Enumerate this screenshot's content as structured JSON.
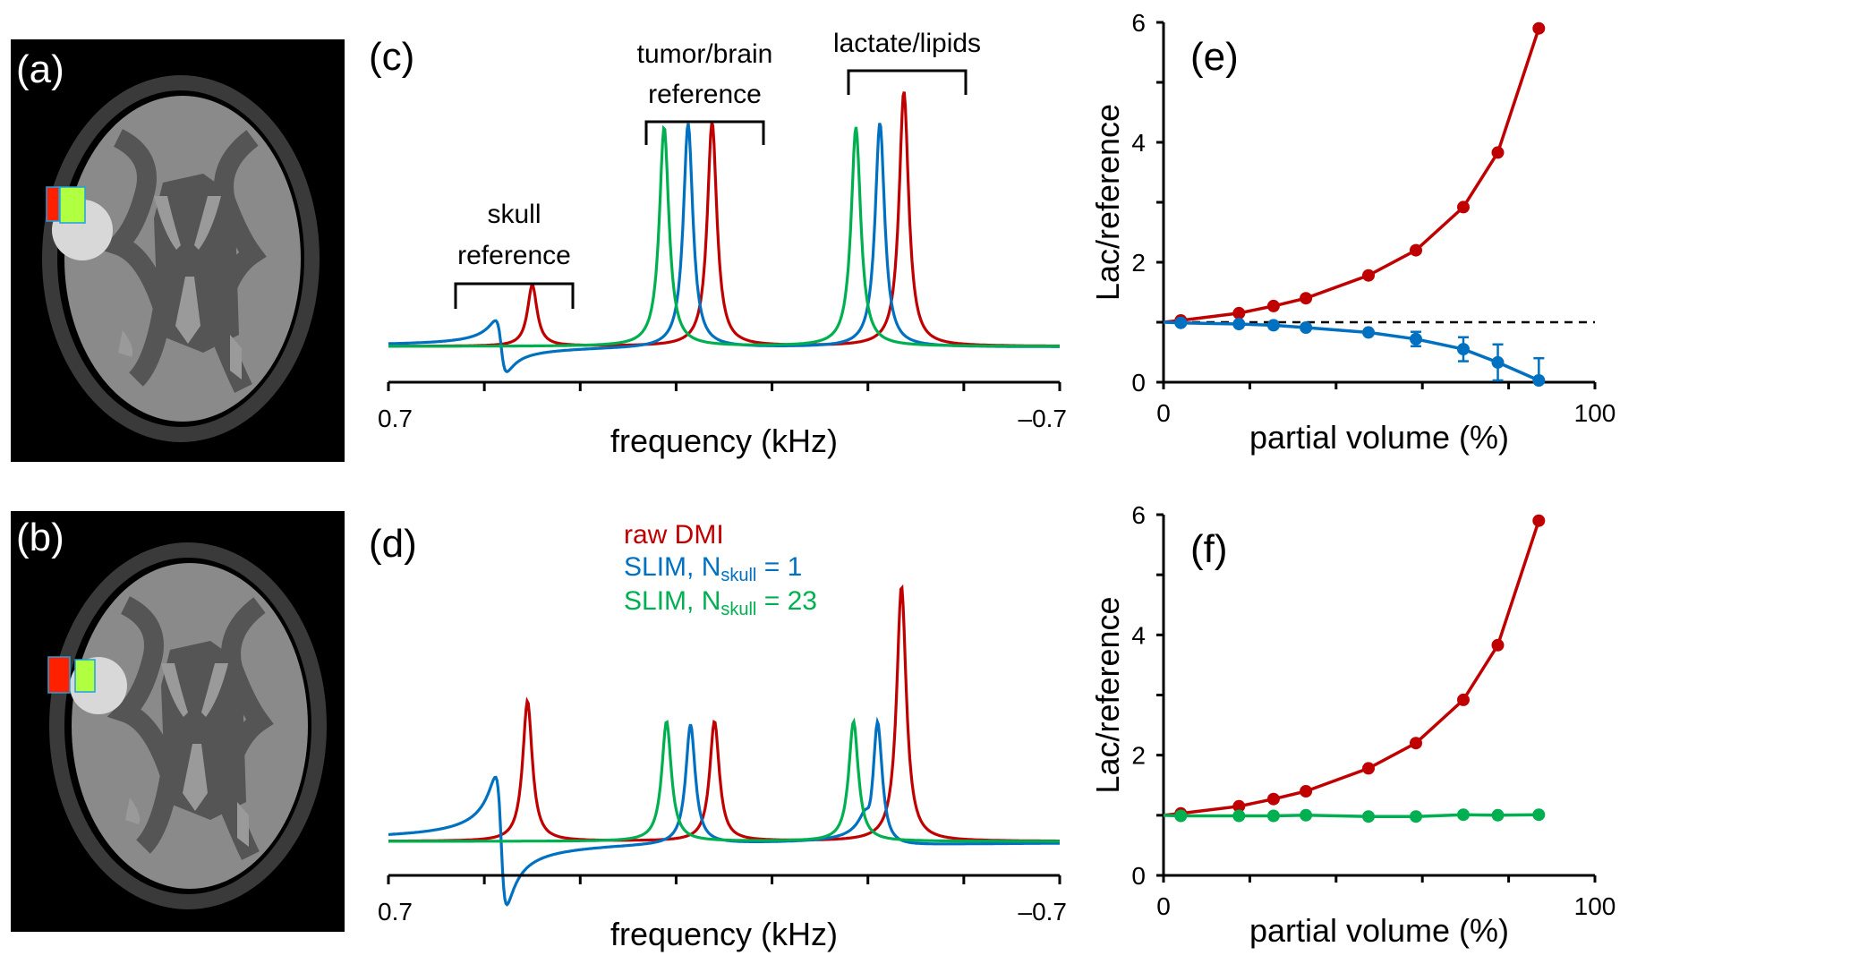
{
  "figure": {
    "panels": {
      "a": {
        "label": "(a)"
      },
      "b": {
        "label": "(b)"
      },
      "c": {
        "label": "(c)"
      },
      "d": {
        "label": "(d)"
      },
      "e": {
        "label": "(e)"
      },
      "f": {
        "label": "(f)"
      }
    },
    "colors": {
      "raw": "#c00000",
      "slim1": "#0070c0",
      "slim23": "#00b050",
      "roi_red": "#ff2000",
      "roi_green": "#b0ff40",
      "roi_outline": "#20a0e0"
    }
  },
  "chart_data": [
    {
      "id": "c",
      "type": "line",
      "title": "",
      "xlabel": "frequency (kHz)",
      "ylabel": "",
      "xlim": [
        0.7,
        -0.7
      ],
      "x_tick_labels": [
        "0.7",
        "-0.7"
      ],
      "x_tick_label_display": [
        "0.7",
        "–0.7"
      ],
      "annotations": [
        {
          "text_lines": [
            "skull",
            "reference"
          ],
          "bracket_kHz": [
            0.45,
            -0.15
          ]
        },
        {
          "text_lines": [
            "tumor/brain",
            "reference"
          ],
          "bracket_kHz": [
            0.15,
            -0.15
          ]
        },
        {
          "text_lines": [
            "lactate/lipids"
          ],
          "bracket_kHz": [
            -0.25,
            -0.55
          ]
        }
      ],
      "series": [
        {
          "name": "raw DMI",
          "color_key": "raw",
          "peaks": [
            {
              "center_kHz": 0.4,
              "height": 0.24
            },
            {
              "center_kHz": 0.025,
              "height": 0.88
            },
            {
              "center_kHz": -0.375,
              "height": 1.0
            }
          ]
        },
        {
          "name": "SLIM, N_skull = 1",
          "color_key": "slim1",
          "peaks": [
            {
              "center_kHz": 0.465,
              "height": -0.1,
              "dispersive": true
            },
            {
              "center_kHz": 0.075,
              "height": 0.88
            },
            {
              "center_kHz": -0.325,
              "height": 0.88
            }
          ]
        },
        {
          "name": "SLIM, N_skull = 23",
          "color_key": "slim23",
          "peaks": [
            {
              "center_kHz": 0.125,
              "height": 0.86
            },
            {
              "center_kHz": -0.275,
              "height": 0.86
            }
          ]
        }
      ]
    },
    {
      "id": "d",
      "type": "line",
      "title": "",
      "xlabel": "frequency (kHz)",
      "ylabel": "",
      "xlim": [
        0.7,
        -0.7
      ],
      "x_tick_labels": [
        "0.7",
        "-0.7"
      ],
      "x_tick_label_display": [
        "0.7",
        "–0.7"
      ],
      "legend": [
        {
          "text": "raw DMI",
          "color_key": "raw"
        },
        {
          "text": "SLIM, N",
          "sub": "skull",
          "suffix": " = 1",
          "color_key": "slim1"
        },
        {
          "text": "SLIM, N",
          "sub": "skull",
          "suffix": " = 23",
          "color_key": "slim23"
        }
      ],
      "legend_position": "top-center",
      "series": [
        {
          "name": "raw DMI",
          "color_key": "raw",
          "peaks": [
            {
              "center_kHz": 0.41,
              "height": 0.55
            },
            {
              "center_kHz": 0.02,
              "height": 0.47
            },
            {
              "center_kHz": -0.37,
              "height": 1.0
            }
          ]
        },
        {
          "name": "SLIM, N_skull = 1",
          "color_key": "slim1",
          "peaks": [
            {
              "center_kHz": 0.465,
              "height": -0.25,
              "dispersive": true
            },
            {
              "center_kHz": 0.07,
              "height": 0.47
            },
            {
              "center_kHz": -0.32,
              "height": 0.52
            },
            {
              "center_kHz": -0.3,
              "height": -0.05,
              "dispersive": true
            }
          ]
        },
        {
          "name": "SLIM, N_skull = 23",
          "color_key": "slim23",
          "peaks": [
            {
              "center_kHz": 0.12,
              "height": 0.47
            },
            {
              "center_kHz": -0.27,
              "height": 0.47
            }
          ]
        }
      ]
    },
    {
      "id": "e",
      "type": "line",
      "title": "",
      "xlabel": "partial volume (%)",
      "ylabel": "Lac/reference",
      "xlim": [
        0,
        100
      ],
      "ylim": [
        0,
        6
      ],
      "x_tick_labels": [
        "0",
        "100"
      ],
      "y_tick_labels": [
        "0",
        "2",
        "4",
        "6"
      ],
      "reference_line": {
        "y": 1,
        "style": "dashed"
      },
      "x": [
        4,
        17.5,
        25.5,
        33,
        47.5,
        58.5,
        69.5,
        77.5,
        87
      ],
      "series": [
        {
          "name": "raw DMI",
          "color_key": "raw",
          "values": [
            1.03,
            1.15,
            1.27,
            1.4,
            1.78,
            2.2,
            2.92,
            3.83,
            5.9
          ]
        },
        {
          "name": "SLIM, N_skull = 1",
          "color_key": "slim1",
          "values": [
            0.99,
            0.97,
            0.95,
            0.91,
            0.83,
            0.72,
            0.55,
            0.33,
            0.03
          ],
          "error": [
            0.02,
            0.02,
            0.02,
            0.03,
            0.04,
            0.12,
            0.2,
            0.3,
            0.37
          ]
        }
      ]
    },
    {
      "id": "f",
      "type": "line",
      "title": "",
      "xlabel": "partial volume (%)",
      "ylabel": "Lac/reference",
      "xlim": [
        0,
        100
      ],
      "ylim": [
        0,
        6
      ],
      "x_tick_labels": [
        "0",
        "100"
      ],
      "y_tick_labels": [
        "0",
        "2",
        "4",
        "6"
      ],
      "x": [
        4,
        17.5,
        25.5,
        33,
        47.5,
        58.5,
        69.5,
        77.5,
        87
      ],
      "series": [
        {
          "name": "raw DMI",
          "color_key": "raw",
          "values": [
            1.03,
            1.15,
            1.27,
            1.4,
            1.78,
            2.2,
            2.92,
            3.83,
            5.9
          ]
        },
        {
          "name": "SLIM, N_skull = 23",
          "color_key": "slim23",
          "values": [
            0.99,
            0.99,
            0.99,
            1.0,
            0.98,
            0.98,
            1.01,
            1.0,
            1.01
          ]
        }
      ]
    }
  ]
}
